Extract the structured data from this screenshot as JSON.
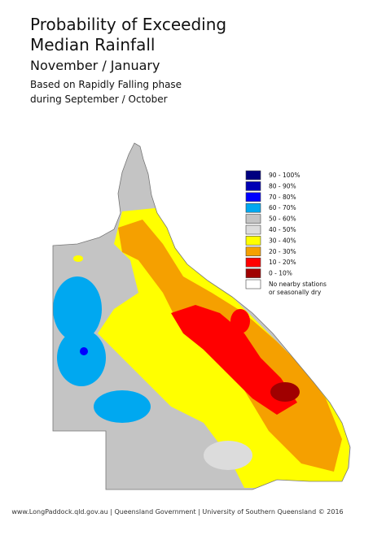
{
  "title": [
    "Probability of Exceeding",
    "Median Rainfall"
  ],
  "period": "November / January",
  "basis": [
    "Based on Rapidly Falling phase",
    "during September / October"
  ],
  "legend": [
    {
      "label": [
        "90 - 100%"
      ],
      "color": "#000080"
    },
    {
      "label": [
        "80 - 90%"
      ],
      "color": "#0000b4"
    },
    {
      "label": [
        "70 - 80%"
      ],
      "color": "#0000ff"
    },
    {
      "label": [
        "60 - 70%"
      ],
      "color": "#00a8f0"
    },
    {
      "label": [
        "50 - 60%"
      ],
      "color": "#c4c4c4"
    },
    {
      "label": [
        "40 - 50%"
      ],
      "color": "#dcdcdc"
    },
    {
      "label": [
        "30 - 40%"
      ],
      "color": "#ffff00"
    },
    {
      "label": [
        "20 - 30%"
      ],
      "color": "#f5a000"
    },
    {
      "label": [
        "10 - 20%"
      ],
      "color": "#ff0000"
    },
    {
      "label": [
        "0 - 10%"
      ],
      "color": "#a00000"
    },
    {
      "label": [
        "No nearby stations",
        "or seasonally dry"
      ],
      "color": "#ffffff"
    }
  ],
  "footer": "www.LongPaddock.qld.gov.au | Queensland Government | University of Southern Queensland © 2016"
}
